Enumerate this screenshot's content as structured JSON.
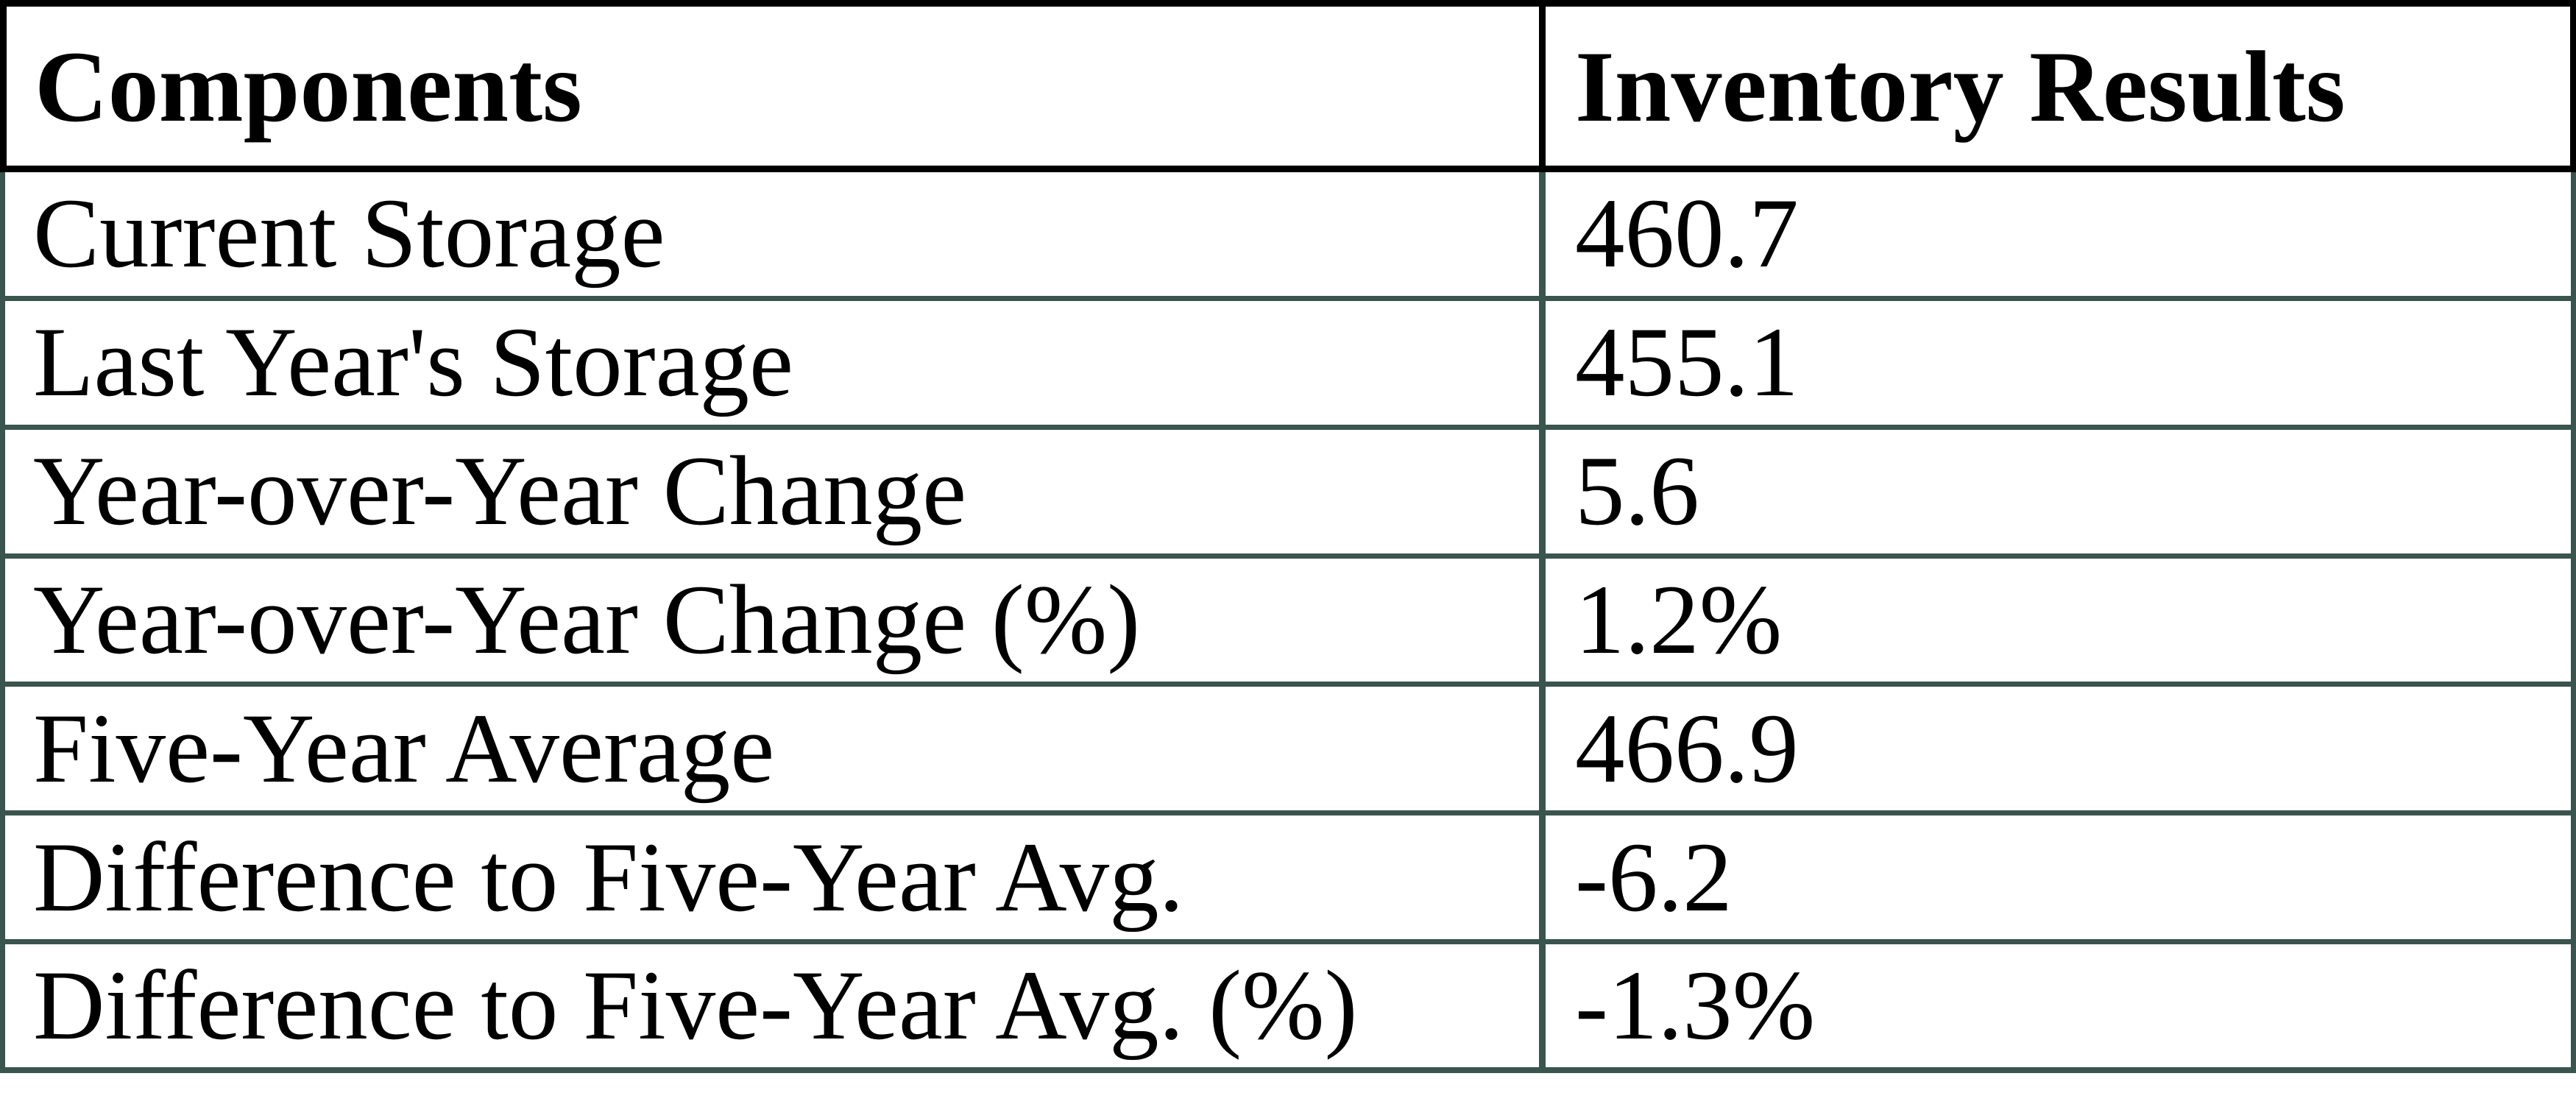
{
  "chart_data": {
    "type": "table",
    "title": "",
    "columns": [
      "Components",
      "Inventory Results"
    ],
    "rows": [
      [
        "Current Storage",
        "460.7"
      ],
      [
        "Last Year's Storage",
        "455.1"
      ],
      [
        "Year-over-Year Change",
        "5.6"
      ],
      [
        "Year-over-Year Change (%)",
        "1.2%"
      ],
      [
        "Five-Year Average",
        "466.9"
      ],
      [
        "Difference to Five-Year Avg.",
        "-6.2"
      ],
      [
        "Difference to Five-Year Avg. (%)",
        "-1.3%"
      ]
    ]
  },
  "colors": {
    "header_border": "#000000",
    "body_border": "#3a544e",
    "text": "#000000",
    "background": "#ffffff"
  }
}
